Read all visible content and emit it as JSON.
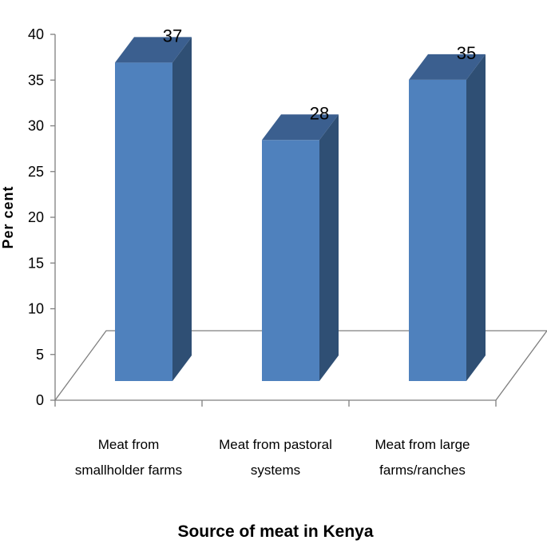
{
  "chart_data": {
    "type": "bar",
    "three_d": true,
    "categories": [
      [
        "Meat  from",
        "smallholder farms"
      ],
      [
        "Meat from pastoral",
        "systems"
      ],
      [
        "Meat from large",
        "farms/ranches"
      ]
    ],
    "values": [
      37,
      28,
      35
    ],
    "data_labels": [
      "37",
      "28",
      "35"
    ],
    "title": "",
    "xlabel": "Source of meat in Kenya",
    "ylabel": "Per cent",
    "ylim": [
      0,
      40
    ],
    "yticks": [
      0,
      5,
      10,
      15,
      20,
      25,
      30,
      35,
      40
    ],
    "grid": false,
    "legend": "none",
    "colors": {
      "bar_front": "#4F81BD",
      "bar_side": "#2F4F74",
      "bar_top": "#3B5F8F",
      "floor_line": "#7F7F7F"
    }
  }
}
